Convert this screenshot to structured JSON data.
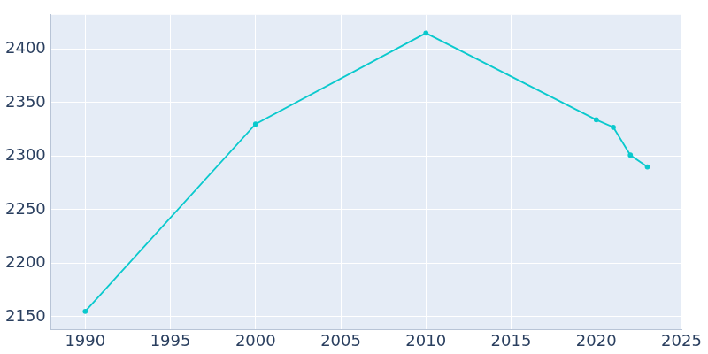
{
  "chart_data": {
    "type": "line",
    "x": [
      1990,
      2000,
      2010,
      2020,
      2021,
      2022,
      2023
    ],
    "values": [
      2155,
      2330,
      2415,
      2334,
      2327,
      2301,
      2290
    ],
    "color": "#0bc9cd",
    "marker": "circle",
    "xlim": [
      1988,
      2025
    ],
    "xticks": [
      1990,
      1995,
      2000,
      2005,
      2010,
      2015,
      2020,
      2025
    ],
    "ylim": [
      2138,
      2432
    ],
    "yticks": [
      2150,
      2200,
      2250,
      2300,
      2350,
      2400
    ],
    "grid": true
  }
}
